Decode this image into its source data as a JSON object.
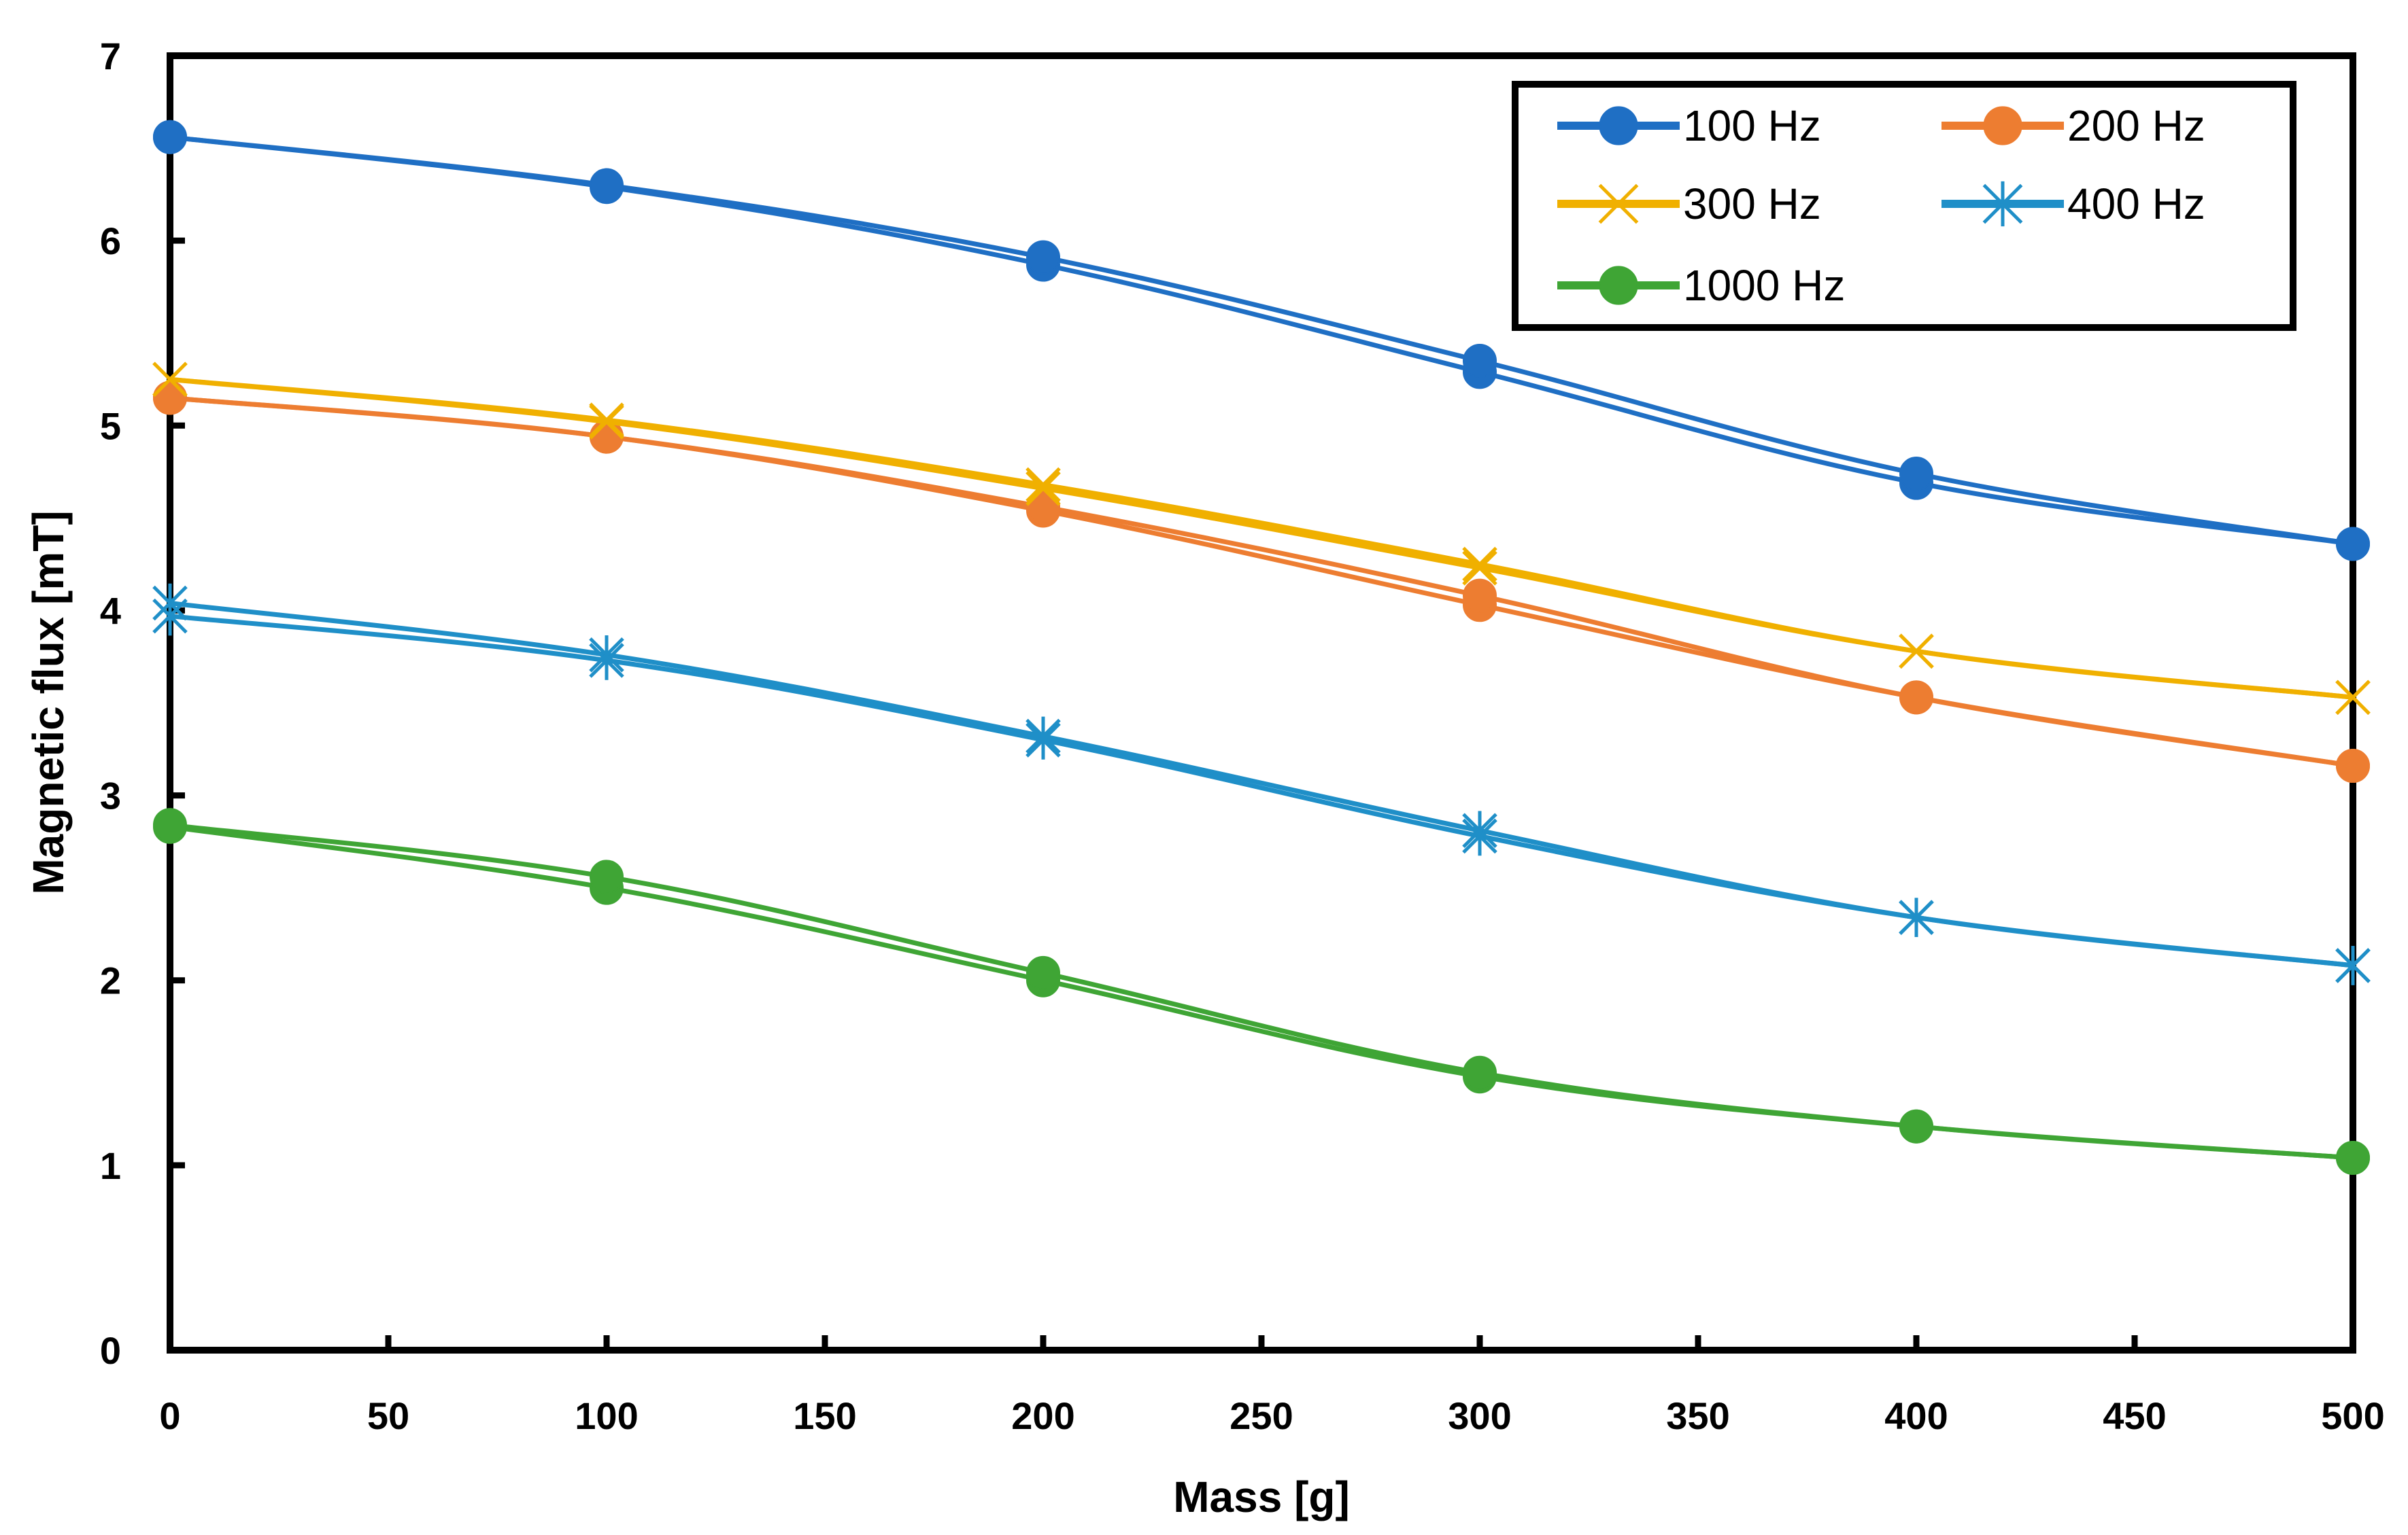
{
  "chart_data": {
    "type": "line",
    "title": "",
    "xlabel": "Mass [g]",
    "ylabel": "Magnetic flux [mT]",
    "xlim": [
      0,
      500
    ],
    "ylim": [
      0,
      7
    ],
    "xticks": [
      0,
      50,
      100,
      150,
      200,
      250,
      300,
      350,
      400,
      450,
      500
    ],
    "yticks": [
      0,
      1,
      2,
      3,
      4,
      5,
      6,
      7
    ],
    "grid": false,
    "legend_position": "top-right",
    "series": [
      {
        "name": "100 Hz",
        "color": "#1f6fc4",
        "marker": "circle",
        "x": [
          0,
          100,
          200,
          300,
          400,
          500
        ],
        "y": [
          6.56,
          6.29,
          5.87,
          5.29,
          4.69,
          4.36
        ],
        "y_repeat": [
          6.56,
          6.3,
          5.91,
          5.35,
          4.74,
          4.36
        ]
      },
      {
        "name": "200 Hz",
        "color": "#ed7d31",
        "marker": "circle",
        "x": [
          0,
          100,
          200,
          300,
          400,
          500
        ],
        "y": [
          5.15,
          4.94,
          4.54,
          4.03,
          3.53,
          3.16
        ],
        "y_repeat": [
          5.15,
          4.94,
          4.56,
          4.08,
          3.53,
          3.16
        ]
      },
      {
        "name": "300 Hz",
        "color": "#f0b000",
        "marker": "x",
        "x": [
          0,
          100,
          200,
          300,
          400,
          500
        ],
        "y": [
          5.25,
          5.02,
          4.66,
          4.23,
          3.78,
          3.53
        ],
        "y_repeat": [
          5.25,
          5.03,
          4.68,
          4.25,
          3.78,
          3.53
        ]
      },
      {
        "name": "400 Hz",
        "color": "#1f8fc8",
        "marker": "star",
        "x": [
          0,
          100,
          200,
          300,
          400,
          500
        ],
        "y": [
          3.97,
          3.73,
          3.3,
          2.78,
          2.34,
          2.08
        ],
        "y_repeat": [
          4.04,
          3.76,
          3.32,
          2.81,
          2.34,
          2.08
        ]
      },
      {
        "name": "1000 Hz",
        "color": "#3fa535",
        "marker": "circle",
        "x": [
          0,
          100,
          200,
          300,
          400,
          500
        ],
        "y": [
          2.83,
          2.5,
          2.0,
          1.48,
          1.21,
          1.04
        ],
        "y_repeat": [
          2.84,
          2.56,
          2.04,
          1.5,
          1.21,
          1.04
        ]
      }
    ]
  }
}
